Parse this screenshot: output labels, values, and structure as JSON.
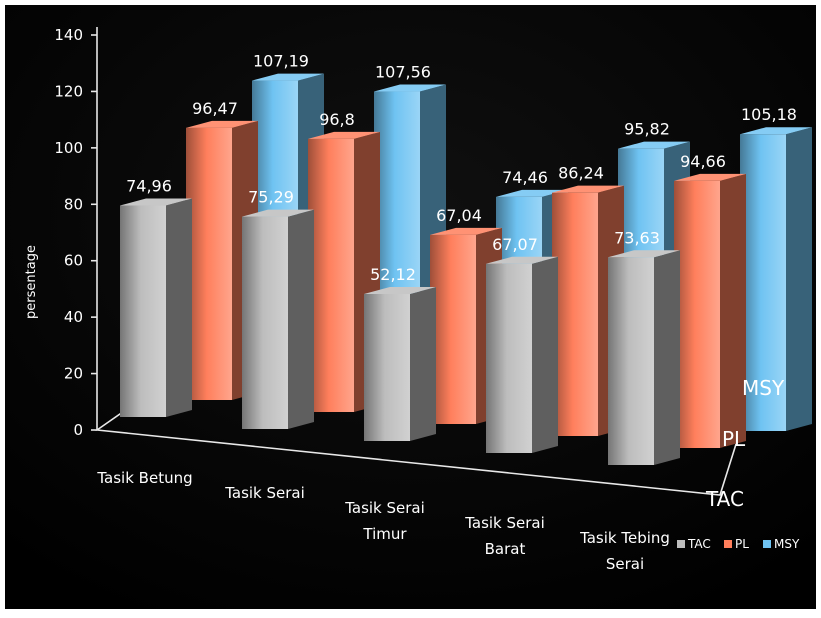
{
  "chart_data": {
    "type": "bar",
    "title": "",
    "xlabel": "",
    "ylabel": "persentage",
    "ylim": [
      0,
      140
    ],
    "yticks": [
      "0",
      "20",
      "40",
      "60",
      "80",
      "100",
      "120",
      "140"
    ],
    "categories": [
      [
        "Tasik Betung"
      ],
      [
        "Tasik Serai"
      ],
      [
        "Tasik Serai",
        "Timur"
      ],
      [
        "Tasik Serai",
        "Barat"
      ],
      [
        "Tasik Tebing",
        "Serai"
      ]
    ],
    "depth_labels": [
      "TAC",
      "PL",
      "MSY"
    ],
    "series": [
      {
        "name": "TAC",
        "values": [
          74.96,
          75.29,
          52.12,
          67.07,
          73.63
        ],
        "labels": [
          "74,96",
          "75,29",
          "52,12",
          "67,07",
          "73,63"
        ],
        "color": "#bdbdbd"
      },
      {
        "name": "PL",
        "values": [
          96.47,
          96.8,
          67.04,
          86.24,
          94.66
        ],
        "labels": [
          "96,47",
          "96,8",
          "67,04",
          "86,24",
          "94,66"
        ],
        "color": "#ff7f5c"
      },
      {
        "name": "MSY",
        "values": [
          107.19,
          107.56,
          74.46,
          95.82,
          105.18
        ],
        "labels": [
          "107,19",
          "107,56",
          "74,46",
          "95,82",
          "105,18"
        ],
        "color": "#6fc3f2"
      }
    ],
    "legend": {
      "position": "bottom-right",
      "items": [
        "TAC",
        "PL",
        "MSY"
      ]
    },
    "grid": false
  }
}
